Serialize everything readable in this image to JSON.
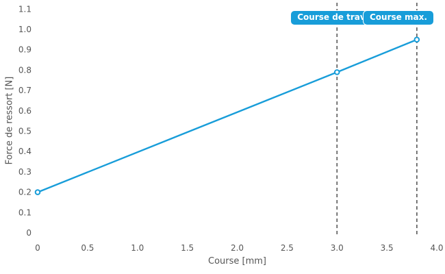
{
  "figure": {
    "background": "#ffffff",
    "text_color": "#555555",
    "accent_blue": "#189dd9",
    "guide_gray": "#666666"
  },
  "chart_data": {
    "type": "line",
    "title": "",
    "xlabel": "Course [mm]",
    "ylabel": "Force de ressort [N]",
    "xlim": [
      0,
      4.0
    ],
    "ylim": [
      0,
      1.1
    ],
    "grid": false,
    "legend": "none",
    "x_ticks": [
      0,
      0.5,
      1.0,
      1.5,
      2.0,
      2.5,
      3.0,
      3.5,
      4.0
    ],
    "x_tick_labels": [
      "0",
      "0.5",
      "1.0",
      "1.5",
      "2.0",
      "2.5",
      "3.0",
      "3.5",
      "4.0"
    ],
    "y_ticks": [
      0,
      0.1,
      0.2,
      0.3,
      0.4,
      0.5,
      0.6,
      0.7,
      0.8,
      0.9,
      1.0,
      1.1
    ],
    "y_tick_labels": [
      "0",
      "0.1",
      "0.2",
      "0.3",
      "0.4",
      "0.5",
      "0.6",
      "0.7",
      "0.8",
      "0.9",
      "1.0",
      "1.1"
    ],
    "series": [
      {
        "name": "Force de ressort",
        "color": "#189dd9",
        "line_width": 2.4,
        "marker": "open-circle",
        "x": [
          0,
          3.0,
          3.8
        ],
        "y": [
          0.2,
          0.79,
          0.95
        ]
      }
    ],
    "annotations": [
      {
        "label": "Course de travail",
        "x": 3.0,
        "line_style": "dashed",
        "line_color": "#666666",
        "badge_color": "#189dd9",
        "text_color": "#ffffff"
      },
      {
        "label": "Course max.",
        "x": 3.8,
        "line_style": "dashed",
        "line_color": "#666666",
        "badge_color": "#189dd9",
        "text_color": "#ffffff"
      }
    ]
  }
}
